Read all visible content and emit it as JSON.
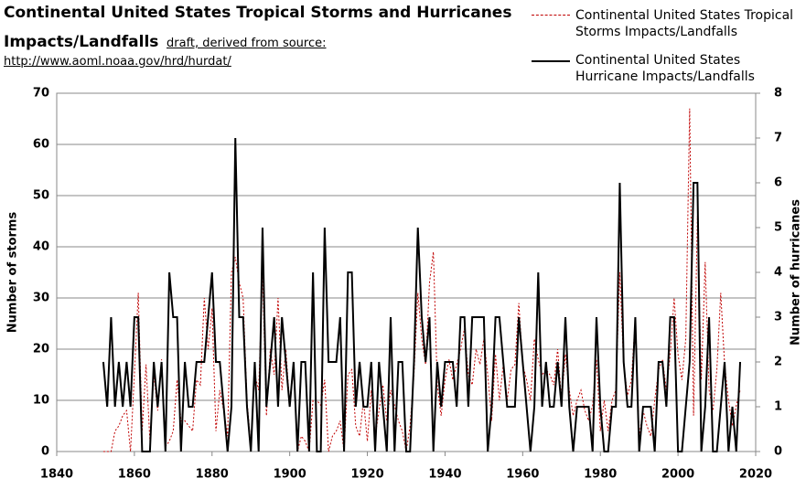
{
  "chart_data": {
    "type": "line",
    "title": "Continental United States Tropical Storms and Hurricanes",
    "title_line2": "Impacts/Landfalls",
    "subtitle": "draft, derived from source:",
    "source": "http://www.aoml.noaa.gov/hrd/hurdat/",
    "ylabel": "Number of storms",
    "y2label": "Number of hurricanes",
    "xlim": [
      1840,
      2020
    ],
    "xticks": [
      1840,
      1860,
      1880,
      1900,
      1920,
      1940,
      1960,
      1980,
      2000,
      2020
    ],
    "ylim": [
      0,
      70
    ],
    "yticks": [
      0,
      10,
      20,
      30,
      40,
      50,
      60,
      70
    ],
    "y2lim": [
      0,
      8
    ],
    "y2ticks": [
      0,
      1,
      2,
      3,
      4,
      5,
      6,
      7,
      8
    ],
    "grid": true,
    "legend": "top-right",
    "x": [
      1852,
      1853,
      1854,
      1855,
      1856,
      1857,
      1858,
      1859,
      1860,
      1861,
      1862,
      1863,
      1864,
      1865,
      1866,
      1867,
      1868,
      1869,
      1870,
      1871,
      1872,
      1873,
      1874,
      1875,
      1876,
      1877,
      1878,
      1879,
      1880,
      1881,
      1882,
      1883,
      1884,
      1885,
      1886,
      1887,
      1888,
      1889,
      1890,
      1891,
      1892,
      1893,
      1894,
      1895,
      1896,
      1897,
      1898,
      1899,
      1900,
      1901,
      1902,
      1903,
      1904,
      1905,
      1906,
      1907,
      1908,
      1909,
      1910,
      1911,
      1912,
      1913,
      1914,
      1915,
      1916,
      1917,
      1918,
      1919,
      1920,
      1921,
      1922,
      1923,
      1924,
      1925,
      1926,
      1927,
      1928,
      1929,
      1930,
      1931,
      1932,
      1933,
      1934,
      1935,
      1936,
      1937,
      1938,
      1939,
      1940,
      1941,
      1942,
      1943,
      1944,
      1945,
      1946,
      1947,
      1948,
      1949,
      1950,
      1951,
      1952,
      1953,
      1954,
      1955,
      1956,
      1957,
      1958,
      1959,
      1960,
      1961,
      1962,
      1963,
      1964,
      1965,
      1966,
      1967,
      1968,
      1969,
      1970,
      1971,
      1972,
      1973,
      1974,
      1975,
      1976,
      1977,
      1978,
      1979,
      1980,
      1981,
      1982,
      1983,
      1984,
      1985,
      1986,
      1987,
      1988,
      1989,
      1990,
      1991,
      1992,
      1993,
      1994,
      1995,
      1996,
      1997,
      1998,
      1999,
      2000,
      2001,
      2002,
      2003,
      2004,
      2005,
      2006,
      2007,
      2008,
      2009,
      2010,
      2011,
      2012,
      2013,
      2014,
      2015,
      2016
    ],
    "series": [
      {
        "name": "Continental United States Tropical Storms Impacts/Landfalls",
        "color": "#c00000",
        "dashed": true,
        "values": [
          0,
          0,
          0,
          4,
          5,
          7,
          8,
          0,
          15,
          31,
          4,
          17,
          2,
          15,
          8,
          18,
          1,
          2,
          4,
          14,
          6,
          6,
          5,
          4,
          14,
          13,
          30,
          20,
          28,
          4,
          12,
          8,
          3,
          35,
          38,
          33,
          30,
          10,
          1,
          15,
          12,
          35,
          7,
          20,
          15,
          30,
          12,
          20,
          9,
          16,
          0,
          3,
          2,
          0,
          10,
          10,
          9,
          14,
          0,
          3,
          4,
          6,
          0,
          15,
          16,
          5,
          3,
          10,
          2,
          12,
          3,
          8,
          13,
          6,
          12,
          9,
          6,
          4,
          0,
          5,
          15,
          31,
          22,
          17,
          33,
          39,
          13,
          7,
          14,
          18,
          14,
          17,
          20,
          24,
          15,
          13,
          20,
          17,
          22,
          15,
          6,
          19,
          10,
          17,
          10,
          16,
          17,
          29,
          17,
          14,
          10,
          22,
          18,
          15,
          16,
          15,
          13,
          20,
          10,
          19,
          12,
          7,
          10,
          12,
          8,
          6,
          9,
          18,
          4,
          10,
          4,
          10,
          12,
          35,
          17,
          11,
          14,
          26,
          3,
          8,
          5,
          3,
          10,
          16,
          18,
          12,
          19,
          30,
          19,
          14,
          22,
          67,
          7,
          46,
          14,
          37,
          12,
          8,
          16,
          31,
          17,
          10,
          5,
          9,
          12
        ]
      },
      {
        "name": "Continental United States Hurricane Impacts/Landfalls",
        "color": "#000000",
        "axis": "y2",
        "values": [
          2,
          1,
          3,
          1,
          2,
          1,
          2,
          1,
          3,
          3,
          0,
          0,
          0,
          2,
          1,
          2,
          0,
          4,
          3,
          3,
          0,
          2,
          1,
          1,
          2,
          2,
          2,
          3,
          4,
          2,
          2,
          1,
          0,
          1,
          7,
          3,
          3,
          1,
          0,
          2,
          0,
          5,
          1,
          2,
          3,
          1,
          3,
          2,
          1,
          2,
          0,
          2,
          2,
          0,
          4,
          0,
          0,
          5,
          2,
          2,
          2,
          3,
          0,
          4,
          4,
          1,
          2,
          1,
          1,
          2,
          0,
          2,
          1,
          0,
          3,
          0,
          2,
          2,
          0,
          0,
          2,
          5,
          3,
          2,
          3,
          0,
          2,
          1,
          2,
          2,
          2,
          1,
          3,
          3,
          1,
          3,
          3,
          3,
          3,
          0,
          1,
          3,
          3,
          2,
          1,
          1,
          1,
          3,
          2,
          1,
          0,
          1,
          4,
          1,
          2,
          1,
          1,
          2,
          1,
          3,
          1,
          0,
          1,
          1,
          1,
          1,
          0,
          3,
          1,
          0,
          0,
          1,
          1,
          6,
          2,
          1,
          1,
          3,
          0,
          1,
          1,
          1,
          0,
          2,
          2,
          1,
          3,
          3,
          0,
          0,
          1,
          2,
          6,
          6,
          0,
          1,
          3,
          0,
          0,
          1,
          2,
          0,
          1,
          0,
          2
        ]
      }
    ]
  }
}
